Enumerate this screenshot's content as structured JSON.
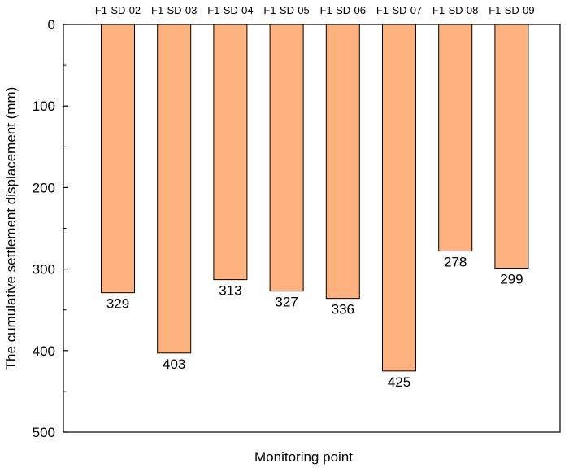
{
  "chart_data": {
    "type": "bar",
    "orientation": "vertical-downward",
    "categories": [
      "F1-SD-02",
      "F1-SD-03",
      "F1-SD-04",
      "F1-SD-05",
      "F1-SD-06",
      "F1-SD-07",
      "F1-SD-08",
      "F1-SD-09"
    ],
    "values": [
      329,
      403,
      313,
      327,
      336,
      425,
      278,
      299
    ],
    "xlabel": "Monitoring point",
    "ylabel": "The cumulative settlement displacement (mm)",
    "ylim": [
      0,
      500
    ],
    "y_ticks": [
      0,
      100,
      200,
      300,
      400,
      500
    ],
    "y_inverted": true,
    "category_labels_position": "top",
    "grid": false,
    "bar_color": "#FDB27F",
    "bar_edge_color": "#000000"
  }
}
